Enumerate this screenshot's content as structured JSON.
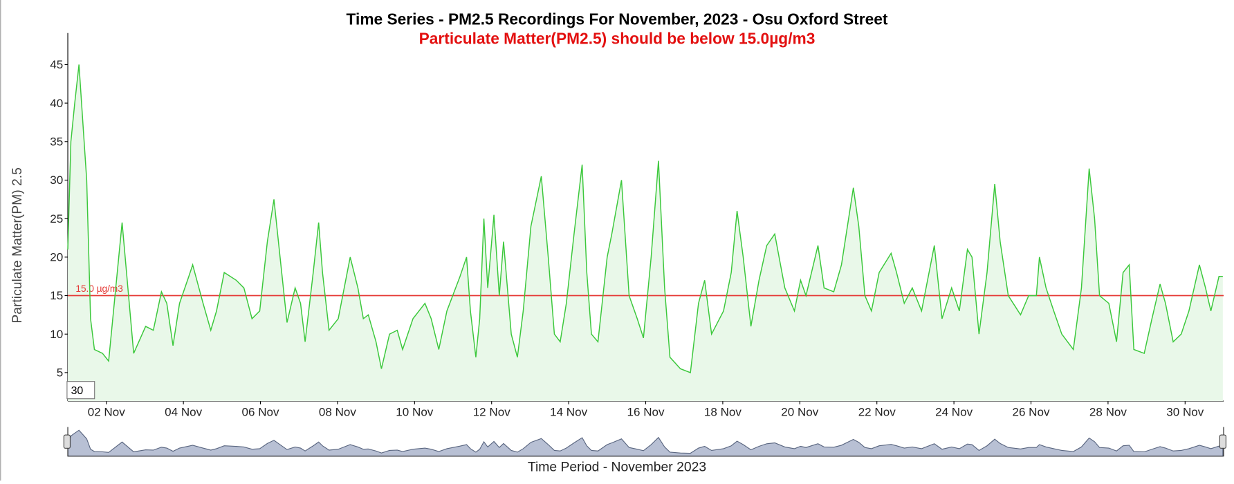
{
  "chart_data": {
    "type": "line",
    "title": "Time Series - PM2.5 Recordings For November, 2023 - Osu Oxford Street",
    "subtitle": "Particulate Matter(PM2.5) should be below 15.0µg/m3",
    "y_label": "Particulate Matter(PM) 2.5",
    "x_label": "Time Period - November 2023",
    "rolling_period": 30,
    "threshold": {
      "value": 15,
      "label": "15.0 µg/m3",
      "color": "#e53935"
    },
    "xlim": [
      1,
      31
    ],
    "xticks": [
      {
        "value": 2,
        "label": "02 Nov"
      },
      {
        "value": 4,
        "label": "04 Nov"
      },
      {
        "value": 6,
        "label": "06 Nov"
      },
      {
        "value": 8,
        "label": "08 Nov"
      },
      {
        "value": 10,
        "label": "10 Nov"
      },
      {
        "value": 12,
        "label": "12 Nov"
      },
      {
        "value": 14,
        "label": "14 Nov"
      },
      {
        "value": 16,
        "label": "16 Nov"
      },
      {
        "value": 18,
        "label": "18 Nov"
      },
      {
        "value": 20,
        "label": "20 Nov"
      },
      {
        "value": 22,
        "label": "22 Nov"
      },
      {
        "value": 24,
        "label": "24 Nov"
      },
      {
        "value": 26,
        "label": "26 Nov"
      },
      {
        "value": 28,
        "label": "28 Nov"
      },
      {
        "value": 30,
        "label": "30 Nov"
      }
    ],
    "ylim": [
      1.3,
      49.1
    ],
    "yticks": [
      5,
      10,
      15,
      20,
      25,
      30,
      35,
      40,
      45
    ],
    "color": "#3cc83c",
    "fill": "#e9f8e9",
    "x": [
      1.0,
      1.08,
      1.18,
      1.29,
      1.49,
      1.59,
      1.69,
      1.9,
      2.06,
      2.41,
      2.71,
      3.02,
      3.22,
      3.43,
      3.57,
      3.73,
      3.9,
      4.14,
      4.24,
      4.51,
      4.71,
      4.86,
      5.06,
      5.37,
      5.57,
      5.78,
      5.98,
      6.18,
      6.35,
      6.53,
      6.69,
      6.9,
      7.04,
      7.16,
      7.37,
      7.51,
      7.61,
      7.78,
      8.02,
      8.33,
      8.53,
      8.67,
      8.8,
      9.0,
      9.14,
      9.35,
      9.55,
      9.69,
      9.96,
      10.27,
      10.43,
      10.63,
      10.84,
      11.18,
      11.35,
      11.45,
      11.59,
      11.69,
      11.8,
      11.9,
      12.06,
      12.2,
      12.31,
      12.51,
      12.67,
      12.82,
      13.02,
      13.29,
      13.47,
      13.63,
      13.78,
      13.94,
      14.14,
      14.35,
      14.47,
      14.59,
      14.76,
      15.0,
      15.12,
      15.37,
      15.57,
      15.78,
      15.94,
      16.14,
      16.33,
      16.49,
      16.63,
      16.9,
      17.16,
      17.37,
      17.53,
      17.71,
      18.02,
      18.22,
      18.37,
      18.53,
      18.73,
      18.94,
      19.14,
      19.35,
      19.61,
      19.86,
      20.02,
      20.16,
      20.47,
      20.63,
      20.88,
      21.08,
      21.39,
      21.53,
      21.69,
      21.86,
      22.06,
      22.37,
      22.51,
      22.71,
      22.92,
      23.16,
      23.49,
      23.69,
      23.94,
      24.14,
      24.35,
      24.47,
      24.65,
      24.86,
      25.06,
      25.2,
      25.41,
      25.73,
      25.94,
      26.14,
      26.22,
      26.39,
      26.59,
      26.8,
      27.1,
      27.31,
      27.51,
      27.65,
      27.78,
      28.02,
      28.22,
      28.39,
      28.55,
      28.67,
      28.94,
      29.14,
      29.35,
      29.49,
      29.69,
      29.9,
      30.1,
      30.37,
      30.53,
      30.67,
      30.88,
      30.98
    ],
    "values": [
      21,
      35,
      40,
      45,
      30,
      12,
      8,
      7.5,
      6.5,
      24.5,
      7.5,
      11,
      10.5,
      15.5,
      14,
      8.5,
      14,
      17.5,
      19,
      14,
      10.5,
      13,
      18,
      17,
      16,
      12,
      13,
      22,
      27.5,
      19,
      11.5,
      16,
      14,
      9,
      18,
      24.5,
      18,
      10.5,
      12,
      20,
      16,
      12,
      12.5,
      9,
      5.5,
      10,
      10.5,
      8,
      12,
      14,
      12,
      8,
      13,
      17.5,
      20,
      13,
      7,
      12,
      25,
      16,
      25.5,
      15,
      22,
      10,
      7,
      13,
      24,
      30.5,
      20,
      10,
      9,
      14,
      23,
      32,
      18,
      10,
      9,
      20,
      23,
      30,
      15,
      12,
      9.5,
      20,
      32.5,
      16,
      7,
      5.5,
      5,
      14,
      17,
      10,
      13,
      18,
      26,
      20,
      11,
      17,
      21.5,
      23,
      16,
      13,
      17,
      15,
      21.5,
      16,
      15.5,
      19,
      29,
      24,
      15,
      13,
      18,
      20.5,
      18,
      14,
      16,
      13,
      21.5,
      12,
      16,
      13,
      21,
      20,
      10,
      18,
      29.5,
      22,
      15,
      12.5,
      15,
      15,
      20,
      16,
      13,
      10,
      8,
      16,
      31.5,
      25,
      15,
      14,
      9,
      18,
      19,
      8,
      7.5,
      12,
      16.5,
      14,
      9,
      10,
      13,
      19,
      16,
      13,
      17.5,
      17.5
    ]
  }
}
